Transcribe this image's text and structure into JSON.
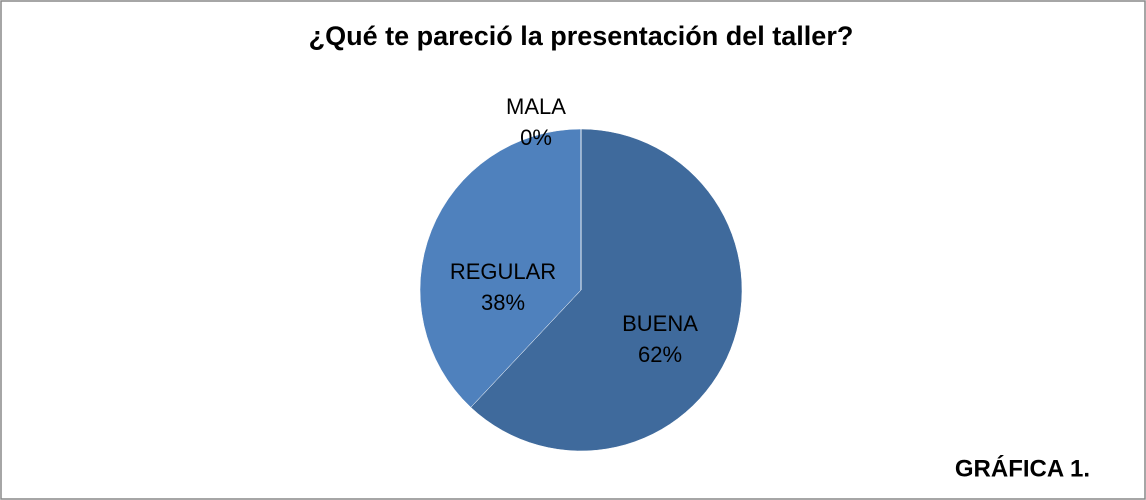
{
  "chart_data": {
    "type": "pie",
    "title": "¿Qué te pareció la presentación del taller?",
    "categories": [
      "BUENA",
      "REGULAR",
      "MALA"
    ],
    "values": [
      62,
      38,
      0
    ],
    "value_labels": [
      "62%",
      "38%",
      "0%"
    ],
    "colors": [
      "#3f6a9c",
      "#4f81bd",
      "#c0504d"
    ],
    "annotation": "GRÁFICA 1."
  }
}
